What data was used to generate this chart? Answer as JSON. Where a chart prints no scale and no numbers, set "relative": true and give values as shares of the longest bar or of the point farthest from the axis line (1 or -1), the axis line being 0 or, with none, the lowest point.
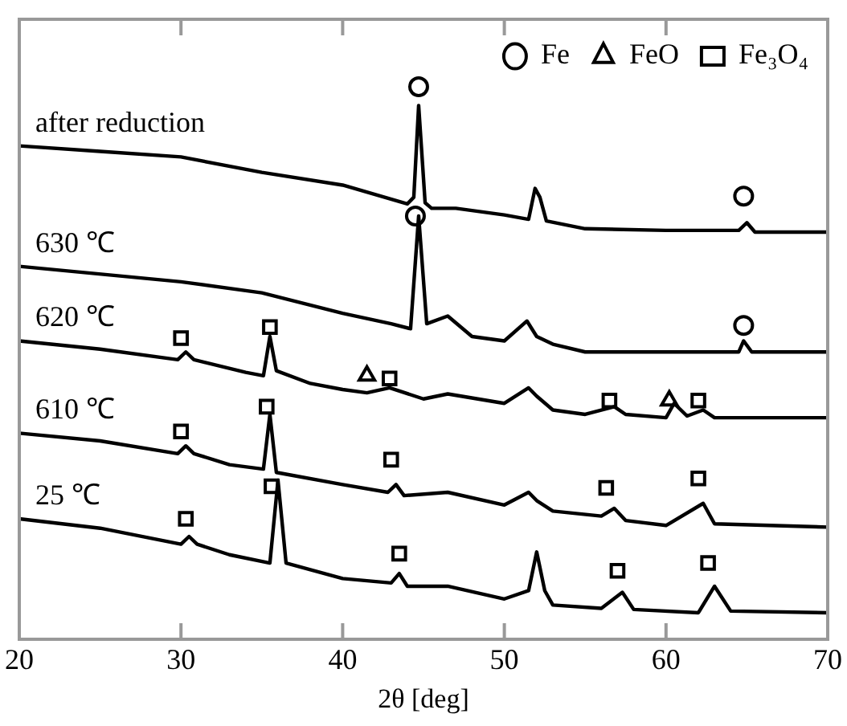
{
  "chart_data": {
    "type": "line",
    "xlabel": "2θ [deg]",
    "xlim": [
      20,
      70
    ],
    "xticks": [
      20,
      30,
      40,
      50,
      60,
      70
    ],
    "relative": true,
    "legend": "top right",
    "series": [
      {
        "name": "after reduction",
        "color": "#000000",
        "marker": "none",
        "x": [
          20,
          25,
          30,
          35,
          40,
          44,
          44.4,
          44.7,
          45.1,
          45.5,
          47,
          50,
          51.5,
          51.9,
          52.2,
          52.6,
          55,
          60,
          64.5,
          65,
          65.5,
          70
        ],
        "values": [
          0.893,
          0.883,
          0.873,
          0.845,
          0.822,
          0.788,
          0.8,
          0.966,
          0.79,
          0.78,
          0.78,
          0.768,
          0.76,
          0.816,
          0.8,
          0.757,
          0.743,
          0.74,
          0.74,
          0.754,
          0.737,
          0.737
        ]
      },
      {
        "name": "630 ℃",
        "color": "#000000",
        "marker": "none",
        "x": [
          20,
          30,
          35,
          40,
          43,
          44.2,
          44.7,
          45.2,
          46.5,
          48,
          50,
          51.4,
          52,
          53,
          55,
          60,
          64.5,
          64.8,
          65.3,
          70
        ],
        "values": [
          0.675,
          0.647,
          0.627,
          0.59,
          0.571,
          0.562,
          0.766,
          0.571,
          0.585,
          0.548,
          0.54,
          0.576,
          0.548,
          0.534,
          0.52,
          0.52,
          0.52,
          0.54,
          0.52,
          0.52
        ]
      },
      {
        "name": "620 ℃",
        "color": "#000000",
        "marker": "none",
        "x": [
          20,
          25,
          29.8,
          30.3,
          30.8,
          34,
          35.1,
          35.5,
          35.9,
          38,
          40,
          41.5,
          42.9,
          45,
          46.5,
          50,
          51.5,
          52,
          53,
          55,
          56.8,
          57.5,
          60,
          60.5,
          61.3,
          62.3,
          63,
          70
        ],
        "values": [
          0.54,
          0.525,
          0.506,
          0.52,
          0.506,
          0.483,
          0.477,
          0.548,
          0.486,
          0.463,
          0.452,
          0.446,
          0.455,
          0.435,
          0.444,
          0.427,
          0.455,
          0.44,
          0.415,
          0.407,
          0.421,
          0.407,
          0.401,
          0.427,
          0.404,
          0.415,
          0.401,
          0.401
        ]
      },
      {
        "name": "610 ℃",
        "color": "#000000",
        "marker": "none",
        "x": [
          20,
          25,
          29.8,
          30.3,
          30.8,
          33,
          35.1,
          35.5,
          35.9,
          40,
          42.8,
          43.3,
          43.8,
          46.5,
          50,
          51.5,
          52,
          53,
          56,
          56.8,
          57.5,
          60,
          62.3,
          63,
          70
        ],
        "values": [
          0.373,
          0.359,
          0.336,
          0.35,
          0.336,
          0.316,
          0.308,
          0.407,
          0.302,
          0.28,
          0.266,
          0.28,
          0.26,
          0.266,
          0.243,
          0.266,
          0.251,
          0.232,
          0.223,
          0.237,
          0.215,
          0.206,
          0.246,
          0.209,
          0.203
        ]
      },
      {
        "name": "25 ℃",
        "color": "#000000",
        "marker": "none",
        "x": [
          20,
          25,
          30,
          30.5,
          31,
          33,
          35.5,
          36,
          36.5,
          40,
          43,
          43.5,
          44,
          46.5,
          50,
          51.5,
          52,
          52.5,
          53,
          56,
          57.3,
          58,
          62,
          63,
          64,
          70
        ],
        "values": [
          0.218,
          0.201,
          0.172,
          0.186,
          0.172,
          0.153,
          0.138,
          0.288,
          0.138,
          0.11,
          0.102,
          0.119,
          0.096,
          0.096,
          0.073,
          0.088,
          0.158,
          0.088,
          0.062,
          0.056,
          0.085,
          0.054,
          0.048,
          0.096,
          0.051,
          0.048
        ]
      },
      {
        "name": "Fe",
        "type": "scatter",
        "color": "#000000",
        "marker": "circle",
        "x": [
          44.7,
          44.5,
          64.8,
          64.8
        ],
        "values": [
          1,
          0.766,
          0.802,
          0.568
        ]
      },
      {
        "name": "FeO",
        "type": "scatter",
        "color": "#000000",
        "marker": "triangle",
        "x": [
          41.5,
          60.2
        ],
        "values": [
          0.477,
          0.432
        ]
      },
      {
        "name": "Fe₃O₄",
        "type": "scatter",
        "color": "#000000",
        "marker": "square",
        "x": [
          30,
          35.5,
          42.9,
          56.5,
          62,
          30,
          35.3,
          43,
          56.3,
          62,
          30.3,
          35.6,
          43.5,
          57,
          62.6
        ],
        "values": [
          0.545,
          0.565,
          0.472,
          0.432,
          0.432,
          0.376,
          0.421,
          0.325,
          0.274,
          0.291,
          0.218,
          0.277,
          0.155,
          0.124,
          0.138
        ]
      }
    ]
  }
}
